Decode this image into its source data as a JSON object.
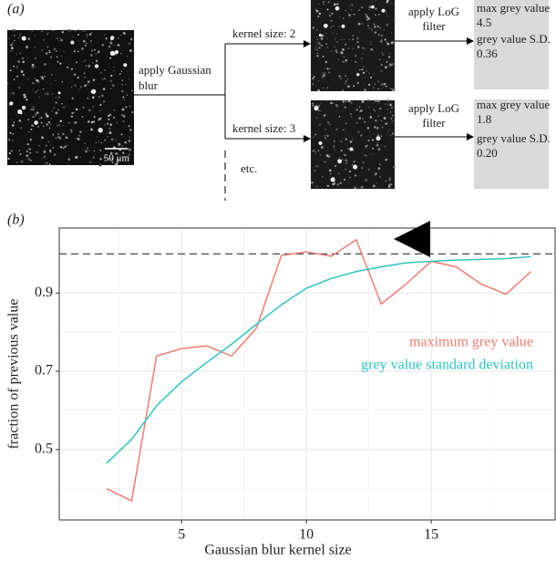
{
  "diagram": {
    "panel_label": "(a)",
    "scale_bar": "50 μm",
    "blur_label": [
      "apply Gaussian",
      "blur"
    ],
    "branches": [
      {
        "kernel": "kernel size: 2",
        "filter": [
          "apply LoG",
          "filter"
        ],
        "result": [
          "max grey value",
          "4.5",
          "grey value S.D.",
          "0.36"
        ]
      },
      {
        "kernel": "kernel size: 3",
        "filter": [
          "apply LoG",
          "filter"
        ],
        "result": [
          "max grey value",
          "1.8",
          "grey value S.D.",
          "0.20"
        ]
      }
    ],
    "etc": "etc."
  },
  "chart_data": {
    "type": "line",
    "panel_label": "(b)",
    "xlabel": "Gaussian blur kernel size",
    "ylabel": "fraction of previous value",
    "x": [
      2,
      3,
      4,
      5,
      6,
      7,
      8,
      9,
      10,
      11,
      12,
      13,
      14,
      15,
      16,
      17,
      18,
      19
    ],
    "series": [
      {
        "name": "maximum grey value",
        "color": "#f07c72",
        "values": [
          0.4,
          0.369,
          0.739,
          0.758,
          0.765,
          0.739,
          0.81,
          0.996,
          1.005,
          0.994,
          1.036,
          0.872,
          0.923,
          0.981,
          0.967,
          0.923,
          0.897,
          0.955
        ]
      },
      {
        "name": "grey value standard deviation",
        "color": "#2ec4c2",
        "values": [
          0.465,
          0.526,
          0.612,
          0.673,
          0.722,
          0.769,
          0.82,
          0.87,
          0.912,
          0.937,
          0.955,
          0.967,
          0.977,
          0.981,
          0.984,
          0.986,
          0.988,
          0.993
        ]
      }
    ],
    "reference_line": 1.0,
    "xlim": [
      0.1,
      20
    ],
    "ylim": [
      0.32,
      1.066
    ],
    "xticks": [
      5,
      10,
      15
    ],
    "yticks": [
      0.5,
      0.7,
      0.9
    ],
    "x_minor_ticks": [
      2.5,
      7.5,
      12.5,
      17.5
    ],
    "y_minor_ticks": [
      0.4,
      0.6,
      0.8,
      1.0
    ],
    "grid": true
  }
}
